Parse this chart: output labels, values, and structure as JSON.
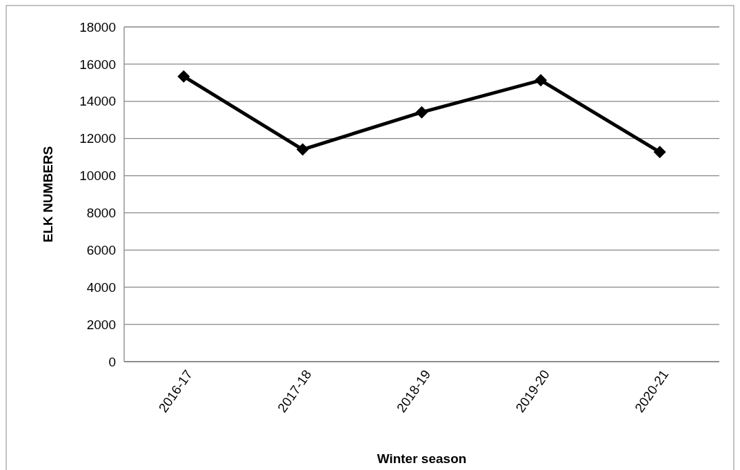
{
  "chart_data": {
    "type": "line",
    "xlabel": "Winter season",
    "ylabel": "ELK NUMBERS",
    "categories": [
      "2016-17",
      "2017-18",
      "2018-19",
      "2019-20",
      "2020-21"
    ],
    "series": [
      {
        "color": "#000000",
        "values": [
          15340,
          11410,
          13410,
          15130,
          11270
        ]
      }
    ],
    "ylim": [
      0,
      18000
    ],
    "yticks": [
      0,
      2000,
      4000,
      6000,
      8000,
      10000,
      12000,
      14000,
      16000,
      18000
    ],
    "grid": "y",
    "marker": "diamond",
    "line_style": "solid"
  }
}
